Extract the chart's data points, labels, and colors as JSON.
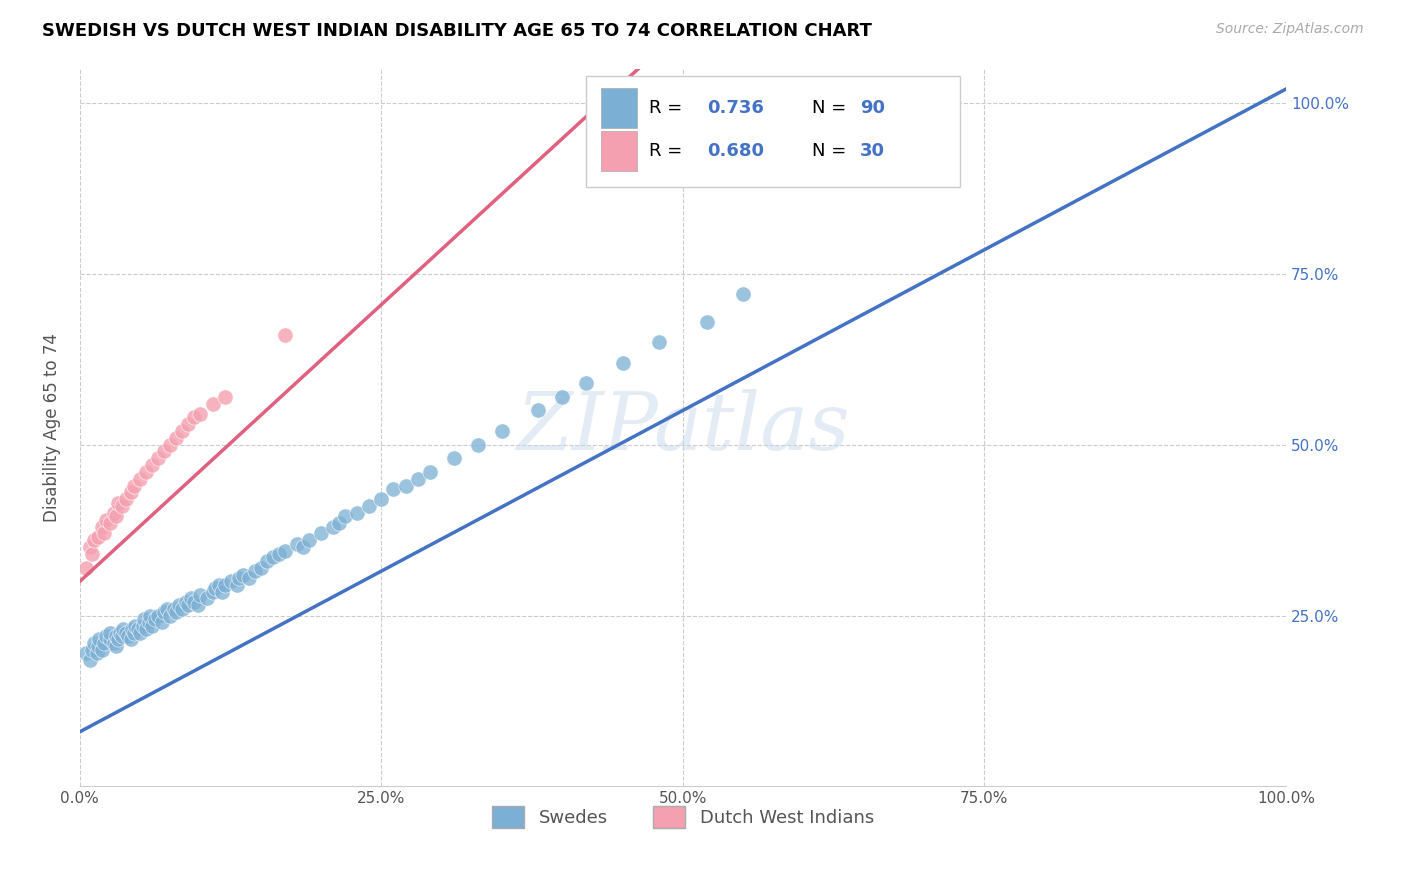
{
  "title": "SWEDISH VS DUTCH WEST INDIAN DISABILITY AGE 65 TO 74 CORRELATION CHART",
  "source": "Source: ZipAtlas.com",
  "ylabel": "Disability Age 65 to 74",
  "xlim": [
    0.0,
    1.0
  ],
  "ylim": [
    0.0,
    1.05
  ],
  "xtick_labels": [
    "0.0%",
    "25.0%",
    "50.0%",
    "75.0%",
    "100.0%"
  ],
  "xtick_vals": [
    0.0,
    0.25,
    0.5,
    0.75,
    1.0
  ],
  "ytick_labels": [
    "25.0%",
    "50.0%",
    "75.0%",
    "100.0%"
  ],
  "ytick_vals": [
    0.25,
    0.5,
    0.75,
    1.0
  ],
  "watermark": "ZIPatlas",
  "blue_R": 0.736,
  "blue_N": 90,
  "pink_R": 0.68,
  "pink_N": 30,
  "blue_color": "#7BAFD4",
  "pink_color": "#F4A0B0",
  "blue_line_color": "#4472C4",
  "pink_line_color": "#E06080",
  "legend_blue_label": "Swedes",
  "legend_pink_label": "Dutch West Indians",
  "blue_line_x0": 0.0,
  "blue_line_y0": 0.08,
  "blue_line_x1": 1.0,
  "blue_line_y1": 1.02,
  "pink_line_x0": 0.0,
  "pink_line_y0": 0.3,
  "pink_line_x1": 0.42,
  "pink_line_y1": 0.98,
  "blue_x": [
    0.005,
    0.008,
    0.01,
    0.012,
    0.014,
    0.015,
    0.016,
    0.018,
    0.02,
    0.022,
    0.025,
    0.025,
    0.028,
    0.03,
    0.03,
    0.032,
    0.033,
    0.035,
    0.036,
    0.038,
    0.04,
    0.042,
    0.043,
    0.045,
    0.046,
    0.048,
    0.05,
    0.052,
    0.053,
    0.055,
    0.057,
    0.058,
    0.06,
    0.062,
    0.065,
    0.068,
    0.07,
    0.072,
    0.075,
    0.078,
    0.08,
    0.082,
    0.085,
    0.088,
    0.09,
    0.092,
    0.095,
    0.098,
    0.1,
    0.105,
    0.11,
    0.112,
    0.115,
    0.118,
    0.12,
    0.125,
    0.13,
    0.132,
    0.135,
    0.14,
    0.145,
    0.15,
    0.155,
    0.16,
    0.165,
    0.17,
    0.18,
    0.185,
    0.19,
    0.2,
    0.21,
    0.215,
    0.22,
    0.23,
    0.24,
    0.25,
    0.26,
    0.27,
    0.28,
    0.29,
    0.31,
    0.33,
    0.35,
    0.38,
    0.4,
    0.42,
    0.45,
    0.48,
    0.52,
    0.55
  ],
  "blue_y": [
    0.195,
    0.185,
    0.2,
    0.21,
    0.195,
    0.205,
    0.215,
    0.2,
    0.21,
    0.22,
    0.215,
    0.225,
    0.21,
    0.205,
    0.22,
    0.215,
    0.225,
    0.22,
    0.23,
    0.225,
    0.22,
    0.215,
    0.23,
    0.225,
    0.235,
    0.23,
    0.225,
    0.235,
    0.245,
    0.23,
    0.24,
    0.25,
    0.235,
    0.245,
    0.25,
    0.24,
    0.255,
    0.26,
    0.25,
    0.26,
    0.255,
    0.265,
    0.26,
    0.27,
    0.265,
    0.275,
    0.27,
    0.265,
    0.28,
    0.275,
    0.285,
    0.29,
    0.295,
    0.285,
    0.295,
    0.3,
    0.295,
    0.305,
    0.31,
    0.305,
    0.315,
    0.32,
    0.33,
    0.335,
    0.34,
    0.345,
    0.355,
    0.35,
    0.36,
    0.37,
    0.38,
    0.385,
    0.395,
    0.4,
    0.41,
    0.42,
    0.435,
    0.44,
    0.45,
    0.46,
    0.48,
    0.5,
    0.52,
    0.55,
    0.57,
    0.59,
    0.62,
    0.65,
    0.68,
    0.72
  ],
  "pink_x": [
    0.005,
    0.008,
    0.01,
    0.012,
    0.015,
    0.018,
    0.02,
    0.022,
    0.025,
    0.028,
    0.03,
    0.032,
    0.035,
    0.038,
    0.042,
    0.045,
    0.05,
    0.055,
    0.06,
    0.065,
    0.07,
    0.075,
    0.08,
    0.085,
    0.09,
    0.095,
    0.1,
    0.11,
    0.12,
    0.17
  ],
  "pink_y": [
    0.32,
    0.35,
    0.34,
    0.36,
    0.365,
    0.38,
    0.37,
    0.39,
    0.385,
    0.4,
    0.395,
    0.415,
    0.41,
    0.42,
    0.43,
    0.44,
    0.45,
    0.46,
    0.47,
    0.48,
    0.49,
    0.5,
    0.51,
    0.52,
    0.53,
    0.54,
    0.545,
    0.56,
    0.57,
    0.66
  ]
}
